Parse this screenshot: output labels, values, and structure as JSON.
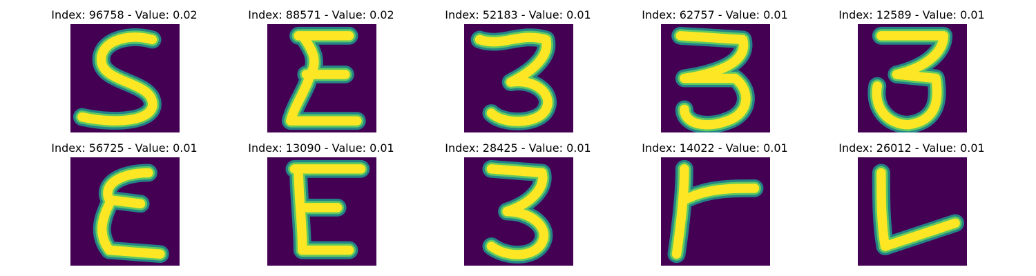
{
  "colors": {
    "background": "#440154",
    "stroke_core": "#fde725",
    "stroke_edge": "#21918c",
    "stroke_mid": "#5ec962"
  },
  "panels": [
    {
      "index_label": "Index: 96758",
      "value_label": "Value: 0.02",
      "glyph": "digit-5-glyph"
    },
    {
      "index_label": "Index: 88571",
      "value_label": "Value: 0.02",
      "glyph": "sigma-glyph"
    },
    {
      "index_label": "Index: 52183",
      "value_label": "Value: 0.01",
      "glyph": "digit-3-glyph"
    },
    {
      "index_label": "Index: 62757",
      "value_label": "Value: 0.01",
      "glyph": "digit-3-glyph"
    },
    {
      "index_label": "Index: 12589",
      "value_label": "Value: 0.01",
      "glyph": "digit-3-glyph"
    },
    {
      "index_label": "Index: 56725",
      "value_label": "Value: 0.01",
      "glyph": "epsilon-glyph"
    },
    {
      "index_label": "Index: 13090",
      "value_label": "Value: 0.01",
      "glyph": "letter-e-glyph"
    },
    {
      "index_label": "Index: 28425",
      "value_label": "Value: 0.01",
      "glyph": "digit-3-glyph"
    },
    {
      "index_label": "Index: 14022",
      "value_label": "Value: 0.01",
      "glyph": "letter-r-glyph"
    },
    {
      "index_label": "Index: 26012",
      "value_label": "Value: 0.01",
      "glyph": "letter-v-glyph"
    }
  ]
}
